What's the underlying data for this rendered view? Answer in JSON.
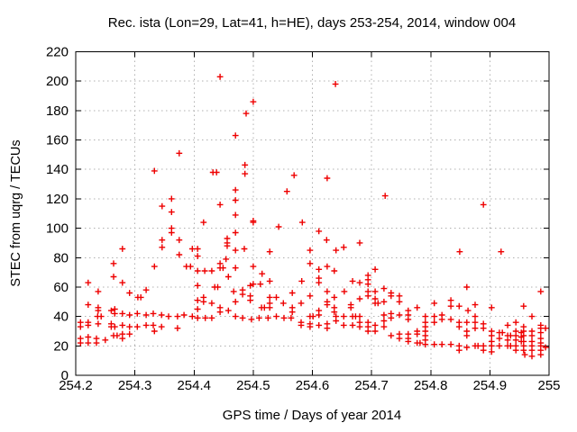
{
  "page": {
    "background": "#ffffff"
  },
  "chart_data": {
    "type": "scatter",
    "title": "Rec. ista (Lon=29, Lat=41, h=HE), days 253-254, 2014, window 004",
    "xlabel": "GPS time / Days of year 2014",
    "ylabel": "STEC from uqrg / TECUs",
    "xlim": [
      254.2,
      255.0
    ],
    "ylim": [
      0,
      220
    ],
    "xtick_values": [
      254.2,
      254.3,
      254.4,
      254.5,
      254.6,
      254.7,
      254.8,
      254.9,
      255.0
    ],
    "xtick_labels": [
      "254.2",
      "254.3",
      "254.4",
      "254.5",
      "254.6",
      "254.7",
      "254.8",
      "254.9",
      "255"
    ],
    "ytick_values": [
      0,
      20,
      40,
      60,
      80,
      100,
      120,
      140,
      160,
      180,
      200,
      220
    ],
    "ytick_labels": [
      "0",
      "20",
      "40",
      "60",
      "80",
      "100",
      "120",
      "140",
      "160",
      "180",
      "200",
      "220"
    ],
    "grid": true,
    "legend": "none",
    "marker": "plus",
    "marker_color": "#ee0000",
    "grid_color": "#b0b0b0",
    "axis_color": "#000000",
    "points": [
      [
        254.444,
        203
      ],
      [
        254.639,
        198
      ],
      [
        254.5,
        186
      ],
      [
        254.488,
        178
      ],
      [
        254.47,
        163
      ],
      [
        254.375,
        151
      ],
      [
        254.486,
        143
      ],
      [
        254.333,
        139
      ],
      [
        254.432,
        138
      ],
      [
        254.438,
        138
      ],
      [
        254.486,
        137
      ],
      [
        254.569,
        136
      ],
      [
        254.625,
        134
      ],
      [
        254.47,
        126
      ],
      [
        254.557,
        125
      ],
      [
        254.723,
        122
      ],
      [
        254.362,
        120
      ],
      [
        254.47,
        119
      ],
      [
        254.444,
        116
      ],
      [
        254.346,
        115
      ],
      [
        254.889,
        116
      ],
      [
        254.362,
        111
      ],
      [
        254.47,
        109
      ],
      [
        254.5,
        104
      ],
      [
        254.362,
        100
      ],
      [
        254.362,
        97
      ],
      [
        254.375,
        92
      ],
      [
        254.346,
        92
      ],
      [
        254.346,
        87
      ],
      [
        254.397,
        86
      ],
      [
        254.279,
        86
      ],
      [
        254.375,
        82
      ],
      [
        254.264,
        76
      ],
      [
        254.333,
        74
      ],
      [
        254.387,
        74
      ],
      [
        254.394,
        74
      ],
      [
        254.264,
        67
      ],
      [
        254.279,
        63
      ],
      [
        254.221,
        63
      ],
      [
        254.319,
        58
      ],
      [
        254.238,
        57
      ],
      [
        254.291,
        56
      ],
      [
        254.305,
        53
      ],
      [
        254.31,
        53
      ],
      [
        254.221,
        48
      ],
      [
        254.238,
        46
      ],
      [
        254.238,
        44
      ],
      [
        254.26,
        44
      ],
      [
        254.266,
        45
      ],
      [
        254.266,
        42
      ],
      [
        254.279,
        42
      ],
      [
        254.291,
        41
      ],
      [
        254.304,
        42
      ],
      [
        254.319,
        41
      ],
      [
        254.331,
        42
      ],
      [
        254.345,
        41
      ],
      [
        254.357,
        40
      ],
      [
        254.372,
        40
      ],
      [
        254.383,
        41
      ],
      [
        254.397,
        40
      ],
      [
        254.237,
        40
      ],
      [
        254.243,
        40
      ],
      [
        254.221,
        36
      ],
      [
        254.221,
        34
      ],
      [
        254.208,
        36
      ],
      [
        254.208,
        33
      ],
      [
        254.238,
        35
      ],
      [
        254.26,
        35
      ],
      [
        254.26,
        33
      ],
      [
        254.266,
        33
      ],
      [
        254.279,
        34
      ],
      [
        254.291,
        33
      ],
      [
        254.304,
        33
      ],
      [
        254.319,
        34
      ],
      [
        254.331,
        34
      ],
      [
        254.345,
        33
      ],
      [
        254.372,
        32
      ],
      [
        254.208,
        25
      ],
      [
        254.208,
        22
      ],
      [
        254.221,
        26
      ],
      [
        254.221,
        22
      ],
      [
        254.235,
        25
      ],
      [
        254.235,
        22
      ],
      [
        254.25,
        24
      ],
      [
        254.264,
        27
      ],
      [
        254.27,
        27
      ],
      [
        254.279,
        28
      ],
      [
        254.279,
        25
      ],
      [
        254.291,
        28
      ],
      [
        254.333,
        30
      ],
      [
        254.416,
        104
      ],
      [
        254.5,
        105
      ],
      [
        254.543,
        101
      ],
      [
        254.583,
        104
      ],
      [
        254.47,
        97
      ],
      [
        254.456,
        93
      ],
      [
        254.456,
        90
      ],
      [
        254.456,
        88
      ],
      [
        254.47,
        85
      ],
      [
        254.485,
        86
      ],
      [
        254.406,
        86
      ],
      [
        254.406,
        81
      ],
      [
        254.596,
        85
      ],
      [
        254.528,
        84
      ],
      [
        254.406,
        71
      ],
      [
        254.418,
        71
      ],
      [
        254.43,
        71
      ],
      [
        254.444,
        76
      ],
      [
        254.444,
        73
      ],
      [
        254.449,
        73
      ],
      [
        254.454,
        79
      ],
      [
        254.47,
        73
      ],
      [
        254.458,
        67
      ],
      [
        254.5,
        74
      ],
      [
        254.515,
        69
      ],
      [
        254.528,
        64
      ],
      [
        254.512,
        62
      ],
      [
        254.5,
        62
      ],
      [
        254.582,
        64
      ],
      [
        254.596,
        76
      ],
      [
        254.406,
        61
      ],
      [
        254.435,
        60
      ],
      [
        254.44,
        60
      ],
      [
        254.467,
        57
      ],
      [
        254.482,
        58
      ],
      [
        254.482,
        55
      ],
      [
        254.495,
        61
      ],
      [
        254.495,
        54
      ],
      [
        254.495,
        51
      ],
      [
        254.416,
        53
      ],
      [
        254.416,
        50
      ],
      [
        254.406,
        51
      ],
      [
        254.406,
        45
      ],
      [
        254.43,
        49
      ],
      [
        254.444,
        46
      ],
      [
        254.444,
        43
      ],
      [
        254.458,
        44
      ],
      [
        254.47,
        50
      ],
      [
        254.47,
        40
      ],
      [
        254.514,
        46
      ],
      [
        254.519,
        46
      ],
      [
        254.528,
        53
      ],
      [
        254.528,
        49
      ],
      [
        254.528,
        46
      ],
      [
        254.539,
        53
      ],
      [
        254.551,
        49
      ],
      [
        254.566,
        56
      ],
      [
        254.581,
        49
      ],
      [
        254.566,
        46
      ],
      [
        254.566,
        43
      ],
      [
        254.596,
        54
      ],
      [
        254.596,
        40
      ],
      [
        254.601,
        40
      ],
      [
        254.406,
        39
      ],
      [
        254.419,
        39
      ],
      [
        254.43,
        39
      ],
      [
        254.482,
        39
      ],
      [
        254.497,
        38
      ],
      [
        254.51,
        39
      ],
      [
        254.525,
        39
      ],
      [
        254.539,
        40
      ],
      [
        254.552,
        39
      ],
      [
        254.564,
        39
      ],
      [
        254.581,
        36
      ],
      [
        254.581,
        34
      ],
      [
        254.596,
        35
      ],
      [
        254.596,
        33
      ],
      [
        254.611,
        98
      ],
      [
        254.624,
        92
      ],
      [
        254.68,
        90
      ],
      [
        254.653,
        87
      ],
      [
        254.64,
        85
      ],
      [
        254.611,
        72
      ],
      [
        254.625,
        74
      ],
      [
        254.637,
        71
      ],
      [
        254.611,
        66
      ],
      [
        254.611,
        63
      ],
      [
        254.668,
        64
      ],
      [
        254.68,
        63
      ],
      [
        254.694,
        68
      ],
      [
        254.694,
        65
      ],
      [
        254.694,
        62
      ],
      [
        254.706,
        72
      ],
      [
        254.625,
        57
      ],
      [
        254.637,
        53
      ],
      [
        254.625,
        50
      ],
      [
        254.625,
        48
      ],
      [
        254.637,
        46
      ],
      [
        254.637,
        43
      ],
      [
        254.654,
        57
      ],
      [
        254.665,
        48
      ],
      [
        254.665,
        46
      ],
      [
        254.68,
        52
      ],
      [
        254.694,
        57
      ],
      [
        254.694,
        54
      ],
      [
        254.706,
        57
      ],
      [
        254.706,
        52
      ],
      [
        254.706,
        49
      ],
      [
        254.711,
        49
      ],
      [
        254.721,
        59
      ],
      [
        254.721,
        50
      ],
      [
        254.733,
        56
      ],
      [
        254.733,
        54
      ],
      [
        254.747,
        54
      ],
      [
        254.747,
        50
      ],
      [
        254.762,
        44
      ],
      [
        254.777,
        46
      ],
      [
        254.611,
        44
      ],
      [
        254.611,
        41
      ],
      [
        254.611,
        34
      ],
      [
        254.625,
        35
      ],
      [
        254.625,
        32
      ],
      [
        254.64,
        40
      ],
      [
        254.64,
        37
      ],
      [
        254.653,
        40
      ],
      [
        254.653,
        34
      ],
      [
        254.668,
        40
      ],
      [
        254.673,
        40
      ],
      [
        254.668,
        34
      ],
      [
        254.68,
        40
      ],
      [
        254.68,
        36
      ],
      [
        254.68,
        33
      ],
      [
        254.694,
        36
      ],
      [
        254.694,
        33
      ],
      [
        254.694,
        30
      ],
      [
        254.706,
        34
      ],
      [
        254.706,
        30
      ],
      [
        254.721,
        41
      ],
      [
        254.721,
        37
      ],
      [
        254.721,
        33
      ],
      [
        254.733,
        42
      ],
      [
        254.733,
        39
      ],
      [
        254.733,
        27
      ],
      [
        254.747,
        41
      ],
      [
        254.747,
        28
      ],
      [
        254.747,
        25
      ],
      [
        254.762,
        41
      ],
      [
        254.762,
        38
      ],
      [
        254.762,
        28
      ],
      [
        254.762,
        25
      ],
      [
        254.762,
        23
      ],
      [
        254.777,
        30
      ],
      [
        254.777,
        28
      ],
      [
        254.777,
        22
      ],
      [
        254.782,
        22
      ],
      [
        254.791,
        40
      ],
      [
        254.791,
        36
      ],
      [
        254.791,
        33
      ],
      [
        254.791,
        30
      ],
      [
        254.791,
        27
      ],
      [
        254.791,
        24
      ],
      [
        254.791,
        21
      ],
      [
        254.849,
        84
      ],
      [
        254.919,
        84
      ],
      [
        254.861,
        60
      ],
      [
        254.986,
        57
      ],
      [
        254.806,
        49
      ],
      [
        254.834,
        51
      ],
      [
        254.834,
        47
      ],
      [
        254.848,
        47
      ],
      [
        254.863,
        44
      ],
      [
        254.875,
        48
      ],
      [
        254.875,
        40
      ],
      [
        254.806,
        40
      ],
      [
        254.806,
        36
      ],
      [
        254.819,
        41
      ],
      [
        254.819,
        38
      ],
      [
        254.834,
        38
      ],
      [
        254.848,
        36
      ],
      [
        254.848,
        33
      ],
      [
        254.861,
        36
      ],
      [
        254.861,
        30
      ],
      [
        254.861,
        27
      ],
      [
        254.875,
        36
      ],
      [
        254.875,
        32
      ],
      [
        254.889,
        35
      ],
      [
        254.889,
        32
      ],
      [
        254.903,
        46
      ],
      [
        254.903,
        30
      ],
      [
        254.903,
        27
      ],
      [
        254.916,
        29
      ],
      [
        254.921,
        29
      ],
      [
        254.916,
        25
      ],
      [
        254.93,
        34
      ],
      [
        254.93,
        27
      ],
      [
        254.935,
        27
      ],
      [
        254.93,
        24
      ],
      [
        254.944,
        36
      ],
      [
        254.944,
        30
      ],
      [
        254.944,
        27
      ],
      [
        254.944,
        24
      ],
      [
        254.957,
        47
      ],
      [
        254.957,
        33
      ],
      [
        254.957,
        30
      ],
      [
        254.957,
        27
      ],
      [
        254.957,
        23
      ],
      [
        254.953,
        29
      ],
      [
        254.953,
        26
      ],
      [
        254.953,
        23
      ],
      [
        254.971,
        40
      ],
      [
        254.971,
        30
      ],
      [
        254.971,
        27
      ],
      [
        254.971,
        23
      ],
      [
        254.986,
        34
      ],
      [
        254.986,
        32
      ],
      [
        254.986,
        29
      ],
      [
        254.986,
        25
      ],
      [
        254.986,
        22
      ],
      [
        254.903,
        23
      ],
      [
        254.806,
        21
      ],
      [
        254.819,
        21
      ],
      [
        254.834,
        21
      ],
      [
        254.848,
        20
      ],
      [
        254.848,
        17
      ],
      [
        254.861,
        19
      ],
      [
        254.875,
        20
      ],
      [
        254.88,
        20
      ],
      [
        254.889,
        20
      ],
      [
        254.889,
        17
      ],
      [
        254.903,
        20
      ],
      [
        254.903,
        16
      ],
      [
        254.916,
        20
      ],
      [
        254.93,
        20
      ],
      [
        254.935,
        20
      ],
      [
        254.944,
        20
      ],
      [
        254.944,
        17
      ],
      [
        254.957,
        20
      ],
      [
        254.957,
        17
      ],
      [
        254.959,
        14
      ],
      [
        254.971,
        20
      ],
      [
        254.971,
        17
      ],
      [
        254.971,
        13
      ],
      [
        254.986,
        20
      ],
      [
        254.986,
        17
      ],
      [
        254.986,
        14
      ],
      [
        254.994,
        32
      ],
      [
        254.994,
        19
      ]
    ]
  }
}
